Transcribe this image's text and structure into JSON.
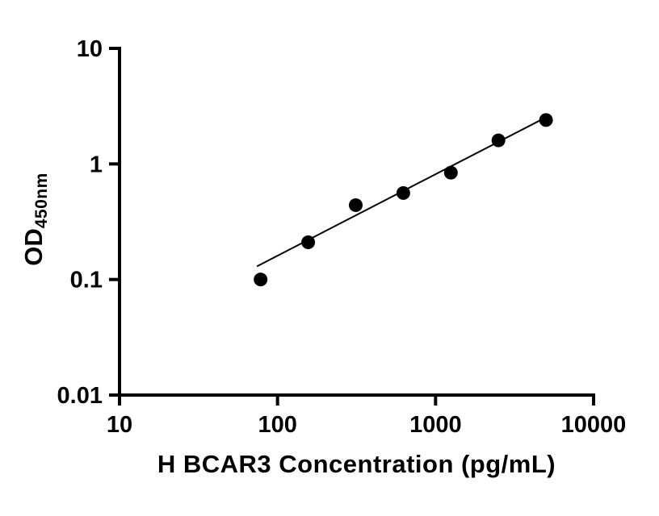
{
  "figure": {
    "background": "#ffffff"
  },
  "chart_data": {
    "type": "scatter",
    "title": "",
    "xlabel": "H BCAR3 Concentration (pg/mL)",
    "ylabel": "OD",
    "ylabel_sub": "450nm",
    "x_scale": "log10",
    "y_scale": "log10",
    "xlim": [
      10,
      10000
    ],
    "ylim": [
      0.01,
      10
    ],
    "x_ticks": [
      10,
      100,
      1000,
      10000
    ],
    "x_tick_labels": [
      "10",
      "100",
      "1000",
      "10000"
    ],
    "y_ticks": [
      0.01,
      0.1,
      1,
      10
    ],
    "y_tick_labels": [
      "0.01",
      "0.1",
      "1",
      "10"
    ],
    "grid": false,
    "legend": false,
    "axis_color": "#000000",
    "line_color": "#000000",
    "marker": {
      "shape": "circle",
      "color": "#000000",
      "radius": 8.5
    },
    "points": [
      {
        "x": 78.125,
        "y": 0.1
      },
      {
        "x": 156.25,
        "y": 0.21
      },
      {
        "x": 312.5,
        "y": 0.44
      },
      {
        "x": 625,
        "y": 0.56
      },
      {
        "x": 1250,
        "y": 0.84
      },
      {
        "x": 2500,
        "y": 1.6
      },
      {
        "x": 5000,
        "y": 2.4
      }
    ],
    "trend_line": {
      "x1": 74,
      "y1": 0.13,
      "x2": 4800,
      "y2": 2.46
    }
  }
}
